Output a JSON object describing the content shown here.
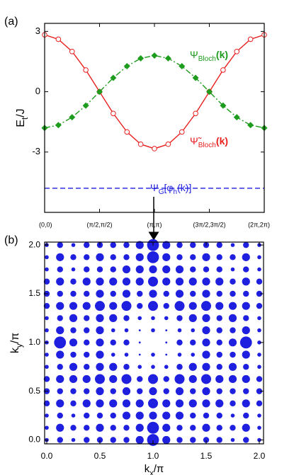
{
  "chart_data": [
    {
      "type": "line",
      "panel_label": "(a)",
      "y_label": [
        {
          "text": "E"
        },
        {
          "text": "t",
          "sub": true
        },
        {
          "text": "/J"
        }
      ],
      "xlim": [
        0,
        2
      ],
      "ylim": [
        -6,
        3.4
      ],
      "xticks": [
        {
          "value": 0,
          "label": "(0,0)"
        },
        {
          "value": 0.5,
          "label": "(π/2,π/2)"
        },
        {
          "value": 1,
          "label": "(π,π)"
        },
        {
          "value": 1.5,
          "label": "(3π/2,3π/2)"
        },
        {
          "value": 2,
          "label": "(2π,2π)"
        }
      ],
      "yticks": [
        -3,
        0,
        3
      ],
      "grid": false,
      "series": [
        {
          "color": "#e8201f",
          "marker": "circle-open",
          "line_style": "solid",
          "x": [
            0,
            0.125,
            0.25,
            0.375,
            0.5,
            0.625,
            0.75,
            0.875,
            1,
            1.125,
            1.25,
            1.375,
            1.5,
            1.625,
            1.75,
            1.875,
            2
          ],
          "values": [
            2.83,
            2.61,
            2.0,
            1.08,
            0,
            -1.08,
            -2.0,
            -2.61,
            -2.83,
            -2.61,
            -2.0,
            -1.08,
            0,
            1.08,
            2.0,
            2.61,
            2.83
          ],
          "label": [
            {
              "text": "Ψ̃"
            },
            {
              "text": "Bloch",
              "sub": true
            },
            {
              "text": "(k)",
              "bold": true
            }
          ]
        },
        {
          "color": "#1e9c1e",
          "marker": "diamond",
          "line_style": "dashdot",
          "x": [
            0,
            0.125,
            0.25,
            0.375,
            0.5,
            0.625,
            0.75,
            0.875,
            1,
            1.125,
            1.25,
            1.375,
            1.5,
            1.625,
            1.75,
            1.875,
            2
          ],
          "values": [
            -1.8,
            -1.66,
            -1.27,
            -0.69,
            0,
            0.69,
            1.27,
            1.66,
            1.8,
            1.66,
            1.27,
            0.69,
            0,
            -0.69,
            -1.27,
            -1.66,
            -1.8
          ],
          "label": [
            {
              "text": "Ψ"
            },
            {
              "text": "Bloch",
              "sub": true
            },
            {
              "text": "(k)",
              "bold": true
            }
          ]
        },
        {
          "color": "#1f1fe0",
          "marker": "none",
          "line_style": "dashed",
          "x": [
            0,
            2
          ],
          "values": [
            -4.8,
            -4.8
          ],
          "label": [
            {
              "text": "Ψ"
            },
            {
              "text": "G",
              "sub": true
            },
            {
              "text": "[φ"
            },
            {
              "text": "h",
              "sub": true
            },
            {
              "text": "(k)]"
            }
          ]
        }
      ]
    },
    {
      "type": "dotgrid",
      "panel_label": "(b)",
      "color": "#1f1fe0",
      "x_label": [
        {
          "text": "k"
        },
        {
          "text": "x",
          "sub": true
        },
        {
          "text": "/π"
        }
      ],
      "y_label": [
        {
          "text": "k"
        },
        {
          "text": "y",
          "sub": true
        },
        {
          "text": "/π"
        }
      ],
      "xlim": [
        -0.02,
        2.04
      ],
      "ylim": [
        -0.04,
        2.03
      ],
      "xticks": [
        {
          "value": 0,
          "label": "0.0"
        },
        {
          "value": 0.5,
          "label": "0.5"
        },
        {
          "value": 1,
          "label": "1.0"
        },
        {
          "value": 1.5,
          "label": "1.5"
        },
        {
          "value": 2,
          "label": "2.0"
        }
      ],
      "yticks": [
        {
          "value": 0,
          "label": "0.0"
        },
        {
          "value": 0.5,
          "label": "0.5"
        },
        {
          "value": 1,
          "label": "1.0"
        },
        {
          "value": 1.5,
          "label": "1.5"
        },
        {
          "value": 2,
          "label": "2.0"
        }
      ],
      "kx": [
        0,
        0.125,
        0.25,
        0.375,
        0.5,
        0.625,
        0.75,
        0.875,
        1,
        1.125,
        1.25,
        1.375,
        1.5,
        1.625,
        1.75,
        1.875,
        2
      ],
      "ky": [
        0,
        0.125,
        0.25,
        0.375,
        0.5,
        0.625,
        0.75,
        0.875,
        1,
        1.125,
        1.25,
        1.375,
        1.5,
        1.625,
        1.75,
        1.875,
        2
      ],
      "size": [
        [
          2,
          3,
          2,
          3,
          3,
          3,
          3,
          4,
          6,
          4,
          3,
          3,
          3,
          3,
          2,
          3,
          2
        ],
        [
          2,
          4,
          3,
          3,
          4,
          3,
          3,
          4,
          6,
          4,
          3,
          3,
          4,
          3,
          3,
          4,
          2
        ],
        [
          2,
          3,
          2,
          3,
          3,
          3,
          4,
          4,
          4,
          4,
          4,
          3,
          3,
          3,
          2,
          3,
          2
        ],
        [
          3,
          4,
          3,
          4,
          4,
          4,
          4,
          4,
          5,
          4,
          4,
          4,
          4,
          4,
          3,
          4,
          3
        ],
        [
          3,
          3,
          3,
          3,
          4,
          3,
          4,
          3,
          4,
          3,
          4,
          3,
          4,
          3,
          3,
          3,
          3
        ],
        [
          3,
          4,
          4,
          4,
          5,
          4,
          5,
          3,
          5,
          3,
          5,
          4,
          5,
          4,
          4,
          4,
          3
        ],
        [
          2,
          3,
          4,
          3,
          4,
          4,
          3,
          2,
          2,
          2,
          3,
          4,
          4,
          3,
          4,
          3,
          2
        ],
        [
          2,
          4,
          3,
          3,
          4,
          2,
          2,
          1,
          2,
          1,
          2,
          2,
          4,
          3,
          3,
          4,
          2
        ],
        [
          2,
          6,
          4,
          3,
          4,
          3,
          3,
          1,
          0,
          1,
          3,
          3,
          4,
          3,
          4,
          6,
          2
        ],
        [
          2,
          4,
          3,
          3,
          4,
          2,
          2,
          1,
          2,
          1,
          2,
          2,
          4,
          3,
          3,
          4,
          2
        ],
        [
          2,
          3,
          4,
          3,
          4,
          4,
          3,
          2,
          2,
          2,
          3,
          4,
          4,
          3,
          4,
          3,
          2
        ],
        [
          3,
          4,
          4,
          4,
          5,
          4,
          5,
          3,
          5,
          3,
          5,
          4,
          5,
          4,
          4,
          4,
          3
        ],
        [
          3,
          3,
          3,
          3,
          4,
          3,
          4,
          3,
          4,
          3,
          4,
          3,
          4,
          3,
          3,
          3,
          3
        ],
        [
          3,
          4,
          3,
          4,
          4,
          4,
          4,
          4,
          5,
          4,
          4,
          4,
          4,
          4,
          3,
          4,
          3
        ],
        [
          2,
          3,
          2,
          3,
          3,
          3,
          4,
          4,
          4,
          4,
          4,
          3,
          3,
          3,
          2,
          3,
          2
        ],
        [
          2,
          4,
          3,
          3,
          4,
          3,
          3,
          4,
          6,
          4,
          3,
          3,
          4,
          3,
          3,
          4,
          2
        ],
        [
          2,
          3,
          2,
          3,
          3,
          3,
          3,
          4,
          6,
          4,
          3,
          3,
          3,
          3,
          2,
          3,
          2
        ]
      ]
    }
  ]
}
